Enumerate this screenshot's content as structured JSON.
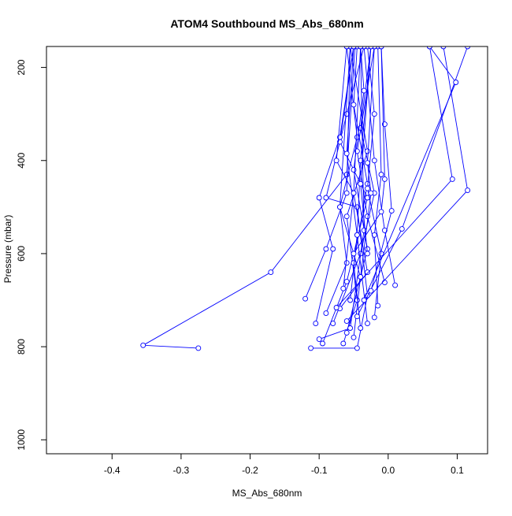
{
  "chart_data": {
    "type": "line",
    "title": "ATOM4 Southbound MS_Abs_680nm",
    "xlabel": "MS_Abs_680nm",
    "ylabel": "Pressure (mbar)",
    "xlim": [
      -0.495,
      0.144
    ],
    "ylim": [
      1030,
      155
    ],
    "y_reversed": true,
    "x_ticks": [
      -0.4,
      -0.3,
      -0.2,
      -0.1,
      0.0,
      0.1
    ],
    "x_tick_labels": [
      "-0.4",
      "-0.3",
      "-0.2",
      "-0.1",
      "0.0",
      "0.1"
    ],
    "y_ticks": [
      200,
      400,
      600,
      800,
      1000
    ],
    "y_tick_labels": [
      "200",
      "400",
      "600",
      "800",
      "1000"
    ],
    "grid": false,
    "legend": "none",
    "line_color": "#0000ff",
    "point_marker": "open-circle",
    "series": [
      {
        "values": [
          [
            -0.275,
            803
          ],
          [
            -0.355,
            797
          ],
          [
            -0.17,
            640
          ],
          [
            -0.06,
            430
          ],
          [
            -0.048,
            155
          ]
        ]
      },
      {
        "values": [
          [
            -0.112,
            803
          ],
          [
            -0.045,
            803
          ],
          [
            -0.03,
            690
          ],
          [
            -0.045,
            500
          ],
          [
            -0.09,
            480
          ],
          [
            -0.06,
            300
          ],
          [
            -0.035,
            155
          ]
        ]
      },
      {
        "values": [
          [
            -0.095,
            793
          ],
          [
            -0.06,
            660
          ],
          [
            -0.03,
            480
          ],
          [
            -0.07,
            360
          ],
          [
            -0.05,
            155
          ]
        ]
      },
      {
        "values": [
          [
            -0.08,
            750
          ],
          [
            -0.04,
            600
          ],
          [
            -0.02,
            470
          ],
          [
            -0.04,
            330
          ],
          [
            -0.025,
            155
          ]
        ]
      },
      {
        "values": [
          [
            -0.065,
            793
          ],
          [
            -0.045,
            700
          ],
          [
            -0.06,
            520
          ],
          [
            -0.03,
            380
          ],
          [
            -0.055,
            155
          ]
        ]
      },
      {
        "values": [
          [
            -0.05,
            780
          ],
          [
            -0.04,
            650
          ],
          [
            -0.07,
            500
          ],
          [
            -0.045,
            350
          ],
          [
            -0.06,
            155
          ]
        ]
      },
      {
        "values": [
          [
            -0.04,
            760
          ],
          [
            -0.05,
            620
          ],
          [
            -0.03,
            450
          ],
          [
            -0.05,
            280
          ],
          [
            -0.045,
            155
          ]
        ]
      },
      {
        "values": [
          [
            -0.06,
            770
          ],
          [
            -0.03,
            590
          ],
          [
            -0.05,
            420
          ],
          [
            -0.035,
            250
          ],
          [
            -0.04,
            155
          ]
        ]
      },
      {
        "values": [
          [
            -0.03,
            750
          ],
          [
            -0.045,
            560
          ],
          [
            -0.04,
            400
          ],
          [
            -0.025,
            155
          ]
        ]
      },
      {
        "values": [
          [
            -0.105,
            750
          ],
          [
            -0.08,
            590
          ],
          [
            -0.1,
            480
          ],
          [
            -0.07,
            350
          ],
          [
            -0.05,
            155
          ]
        ]
      },
      {
        "values": [
          [
            -0.12,
            697
          ],
          [
            -0.09,
            590
          ],
          [
            -0.06,
            470
          ],
          [
            -0.055,
            155
          ]
        ]
      },
      {
        "values": [
          [
            -0.02,
            737
          ],
          [
            -0.01,
            600
          ],
          [
            -0.03,
            460
          ],
          [
            -0.02,
            300
          ],
          [
            -0.03,
            155
          ]
        ]
      },
      {
        "values": [
          [
            -0.015,
            712
          ],
          [
            -0.02,
            560
          ],
          [
            -0.01,
            430
          ],
          [
            -0.015,
            155
          ]
        ]
      },
      {
        "values": [
          [
            0.01,
            668
          ],
          [
            -0.005,
            550
          ],
          [
            -0.02,
            400
          ],
          [
            -0.035,
            155
          ]
        ]
      },
      {
        "values": [
          [
            -0.005,
            662
          ],
          [
            -0.03,
            520
          ],
          [
            -0.045,
            380
          ],
          [
            -0.02,
            155
          ]
        ]
      },
      {
        "values": [
          [
            -0.07,
            718
          ],
          [
            -0.03,
            640
          ],
          [
            -0.05,
            470
          ],
          [
            -0.04,
            155
          ]
        ]
      },
      {
        "values": [
          [
            -0.09,
            728
          ],
          [
            -0.06,
            620
          ],
          [
            -0.07,
            500
          ],
          [
            -0.055,
            155
          ]
        ]
      },
      {
        "values": [
          [
            -0.1,
            784
          ],
          [
            -0.055,
            760
          ],
          [
            -0.035,
            550
          ],
          [
            -0.04,
            155
          ]
        ]
      },
      {
        "values": [
          [
            -0.045,
            735
          ],
          [
            0.02,
            547
          ],
          [
            0.115,
            155
          ]
        ]
      },
      {
        "values": [
          [
            -0.06,
            745
          ],
          [
            0.115,
            464
          ],
          [
            0.08,
            155
          ]
        ]
      },
      {
        "values": [
          [
            -0.075,
            716
          ],
          [
            0.093,
            440
          ],
          [
            0.06,
            155
          ]
        ]
      },
      {
        "values": [
          [
            -0.035,
            700
          ],
          [
            0.098,
            232
          ],
          [
            0.06,
            155
          ]
        ]
      },
      {
        "values": [
          [
            -0.025,
            680
          ],
          [
            0.005,
            508
          ],
          [
            -0.005,
            322
          ],
          [
            -0.01,
            155
          ]
        ]
      },
      {
        "values": [
          [
            -0.055,
            700
          ],
          [
            -0.045,
            560
          ],
          [
            -0.06,
            385
          ],
          [
            -0.05,
            155
          ]
        ]
      },
      {
        "values": [
          [
            -0.065,
            675
          ],
          [
            -0.05,
            470
          ],
          [
            -0.075,
            400
          ],
          [
            -0.06,
            155
          ]
        ]
      },
      {
        "values": [
          [
            -0.04,
            650
          ],
          [
            -0.025,
            470
          ],
          [
            -0.03,
            405
          ],
          [
            -0.02,
            155
          ]
        ]
      },
      {
        "values": [
          [
            -0.05,
            600
          ],
          [
            -0.01,
            510
          ],
          [
            -0.005,
            440
          ],
          [
            -0.01,
            155
          ]
        ]
      },
      {
        "values": [
          [
            -0.03,
            600
          ],
          [
            -0.04,
            450
          ],
          [
            -0.025,
            155
          ]
        ]
      }
    ]
  }
}
